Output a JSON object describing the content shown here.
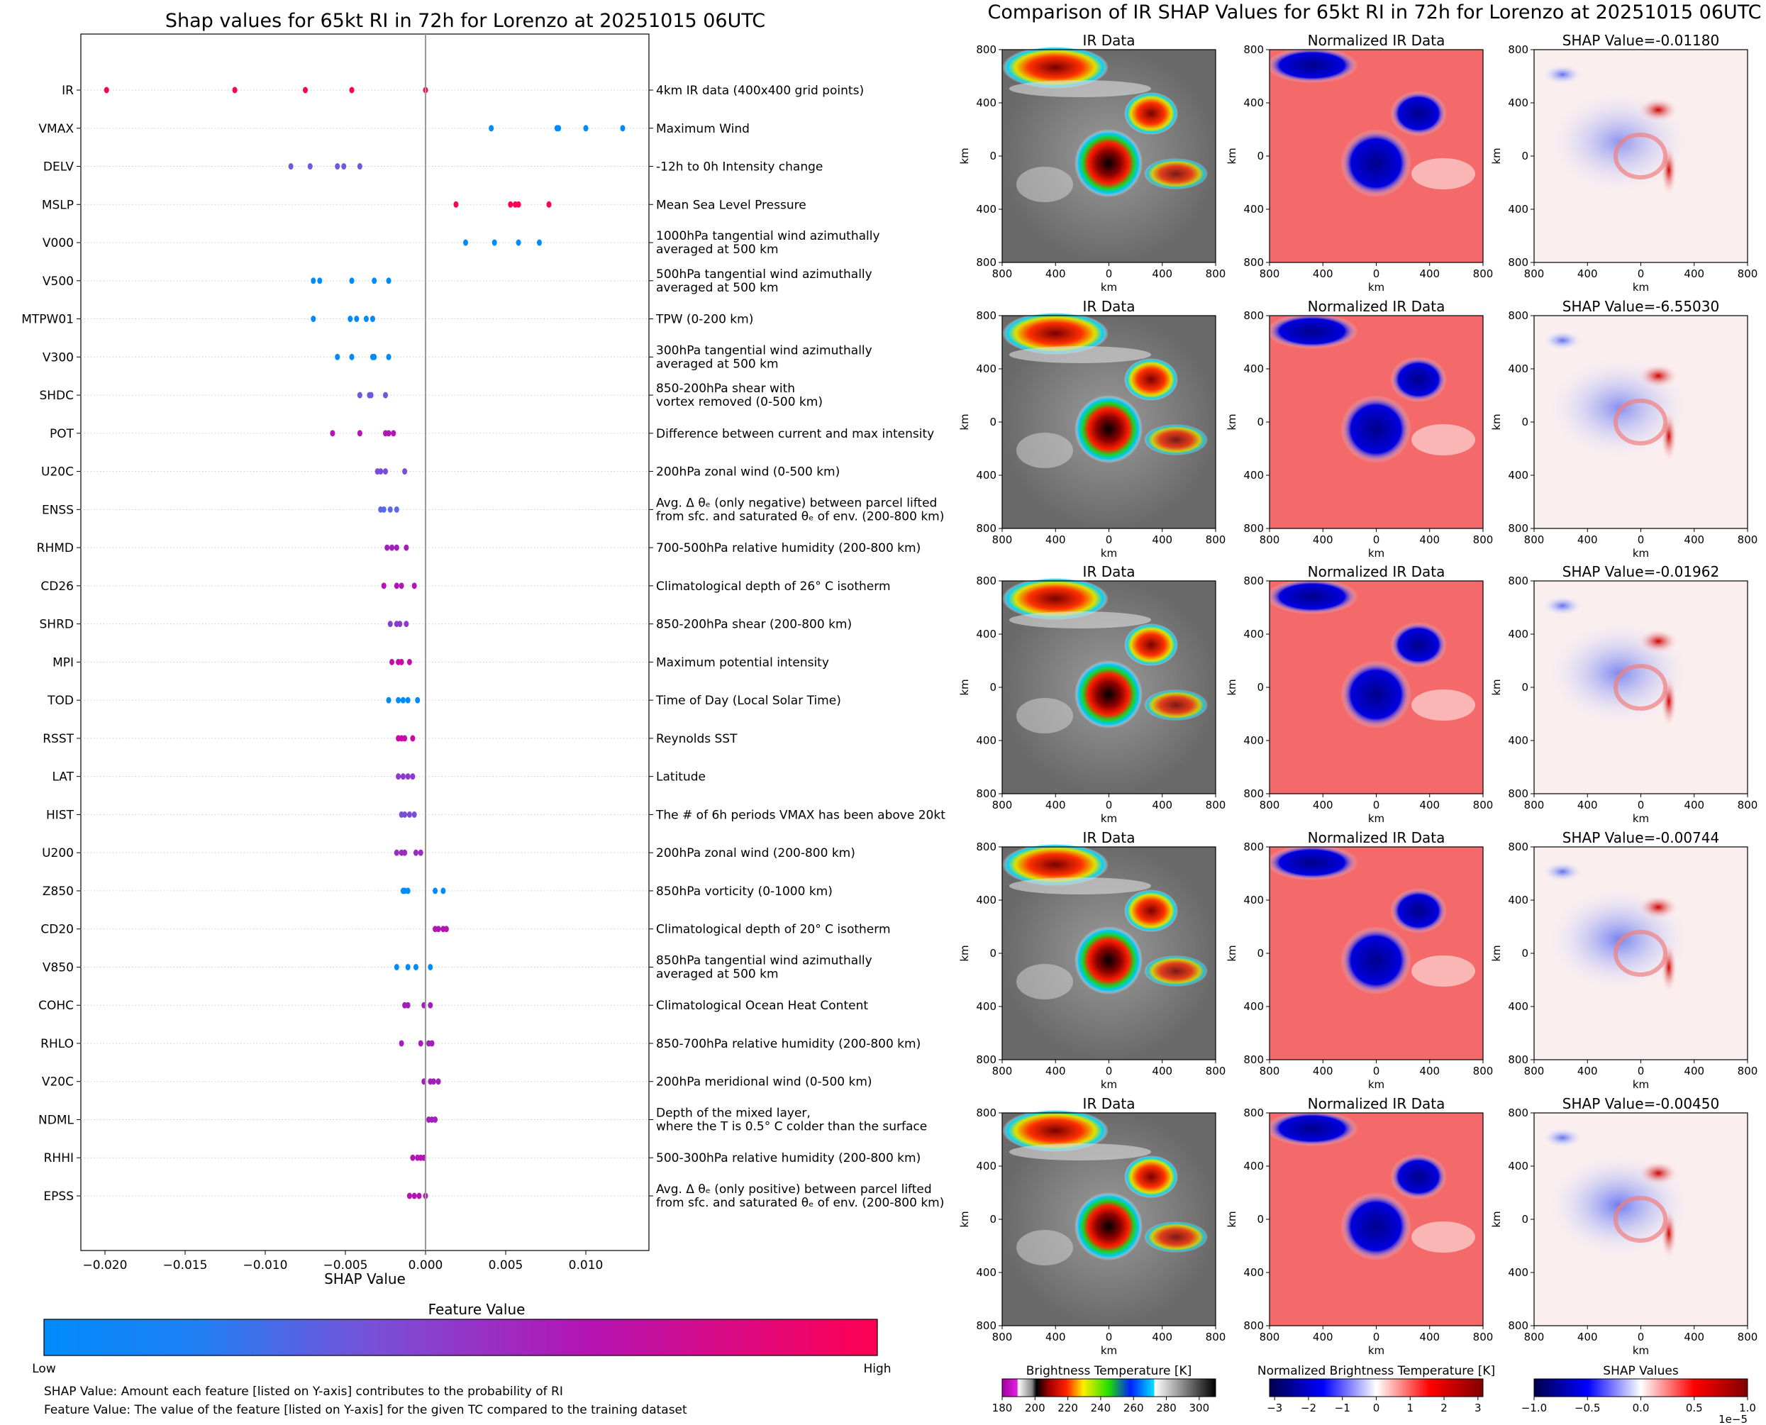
{
  "left": {
    "title": "Shap values for 65kt RI in 72h for Lorenzo at 20251015 06UTC",
    "xlabel": "SHAP Value",
    "xlim": [
      -0.0212,
      0.0138
    ],
    "xticks": [
      -0.02,
      -0.015,
      -0.01,
      -0.005,
      0.0,
      0.005,
      0.01
    ],
    "xtick_labels": [
      "−0.020",
      "−0.015",
      "−0.010",
      "−0.005",
      "0.000",
      "0.005",
      "0.010"
    ],
    "features": [
      {
        "code": "IR",
        "desc": [
          "4km IR data (400x400 grid points)"
        ],
        "color": "#ff0052",
        "values": [
          -0.0199,
          -0.0119,
          -0.0075,
          -0.0046,
          0.0
        ]
      },
      {
        "code": "VMAX",
        "desc": [
          "Maximum Wind"
        ],
        "color": "#008bfb",
        "values": [
          0.0041,
          0.0082,
          0.0083,
          0.01,
          0.0123
        ]
      },
      {
        "code": "DELV",
        "desc": [
          "-12h to 0h Intensity change"
        ],
        "color": "#6e5ae0",
        "values": [
          -0.0084,
          -0.0072,
          -0.0055,
          -0.0051,
          -0.0041
        ]
      },
      {
        "code": "MSLP",
        "desc": [
          "Mean Sea Level Pressure"
        ],
        "color": "#ff0052",
        "values": [
          0.0019,
          0.0053,
          0.0056,
          0.0058,
          0.0077
        ]
      },
      {
        "code": "V000",
        "desc": [
          "1000hPa tangential wind azimuthally",
          "averaged at 500 km"
        ],
        "color": "#008bfb",
        "values": [
          0.0025,
          0.0043,
          0.0058,
          0.0071
        ]
      },
      {
        "code": "V500",
        "desc": [
          "500hPa tangential wind azimuthally",
          "averaged at 500 km"
        ],
        "color": "#008bfb",
        "values": [
          -0.007,
          -0.0066,
          -0.0046,
          -0.0032,
          -0.0023
        ]
      },
      {
        "code": "MTPW01",
        "desc": [
          "TPW (0-200 km)"
        ],
        "color": "#008bfb",
        "values": [
          -0.007,
          -0.0047,
          -0.0043,
          -0.0037,
          -0.0033
        ]
      },
      {
        "code": "V300",
        "desc": [
          "300hPa tangential wind azimuthally",
          "averaged at 500 km"
        ],
        "color": "#008bfb",
        "values": [
          -0.0055,
          -0.0046,
          -0.0033,
          -0.0032,
          -0.0023
        ]
      },
      {
        "code": "SHDC",
        "desc": [
          "850-200hPa shear with",
          "vortex removed (0-500 km)"
        ],
        "color": "#6e5ae0",
        "values": [
          -0.0041,
          -0.0035,
          -0.0034,
          -0.0025
        ]
      },
      {
        "code": "POT",
        "desc": [
          "Difference between current and max intensity"
        ],
        "color": "#b414b4",
        "values": [
          -0.0058,
          -0.0041,
          -0.0025,
          -0.0023,
          -0.002
        ]
      },
      {
        "code": "U20C",
        "desc": [
          "200hPa zonal wind (0-500 km)"
        ],
        "color": "#7a4fd6",
        "values": [
          -0.003,
          -0.0028,
          -0.0025,
          -0.0013
        ]
      },
      {
        "code": "ENSS",
        "desc": [
          "Avg. Δ θₑ (only negative) between parcel lifted",
          "from sfc. and saturated θₑ of env. (200-800 km)"
        ],
        "color": "#5a6ae8",
        "values": [
          -0.0028,
          -0.0026,
          -0.0022,
          -0.0018
        ]
      },
      {
        "code": "RHMD",
        "desc": [
          "700-500hPa relative humidity (200-800 km)"
        ],
        "color": "#a020b8",
        "values": [
          -0.0024,
          -0.0021,
          -0.0018,
          -0.0012
        ]
      },
      {
        "code": "CD26",
        "desc": [
          "Climatological depth of 26° C isotherm"
        ],
        "color": "#b414b4",
        "values": [
          -0.0026,
          -0.0018,
          -0.0015,
          -0.0007
        ]
      },
      {
        "code": "SHRD",
        "desc": [
          "850-200hPa shear (200-800 km)"
        ],
        "color": "#8a3ccc",
        "values": [
          -0.0022,
          -0.0018,
          -0.0016,
          -0.0012
        ]
      },
      {
        "code": "MPI",
        "desc": [
          "Maximum potential intensity"
        ],
        "color": "#c80aa8",
        "values": [
          -0.0021,
          -0.0017,
          -0.0015,
          -0.001
        ]
      },
      {
        "code": "TOD",
        "desc": [
          "Time of Day (Local Solar Time)"
        ],
        "color": "#008bfb",
        "values": [
          -0.0023,
          -0.0017,
          -0.0014,
          -0.0011,
          -0.0005
        ]
      },
      {
        "code": "RSST",
        "desc": [
          "Reynolds SST"
        ],
        "color": "#c80aa8",
        "values": [
          -0.0017,
          -0.0015,
          -0.0013,
          -0.0008
        ]
      },
      {
        "code": "LAT",
        "desc": [
          "Latitude"
        ],
        "color": "#8a3ccc",
        "values": [
          -0.0017,
          -0.0014,
          -0.0011,
          -0.0008
        ]
      },
      {
        "code": "HIST",
        "desc": [
          "The # of 6h periods VMAX has been above 20kt"
        ],
        "color": "#7a4fd6",
        "values": [
          -0.0015,
          -0.0013,
          -0.001,
          -0.0007
        ]
      },
      {
        "code": "U200",
        "desc": [
          "200hPa zonal wind (200-800 km)"
        ],
        "color": "#9a2cc0",
        "values": [
          -0.0018,
          -0.0015,
          -0.0013,
          -0.0006,
          -0.0003
        ]
      },
      {
        "code": "Z850",
        "desc": [
          "850hPa vorticity (0-1000 km)"
        ],
        "color": "#008bfb",
        "values": [
          -0.0014,
          -0.0013,
          -0.0011,
          0.0006,
          0.0011
        ]
      },
      {
        "code": "CD20",
        "desc": [
          "Climatological depth of 20° C isotherm"
        ],
        "color": "#b414b4",
        "values": [
          0.0006,
          0.0008,
          0.0011,
          0.0013
        ]
      },
      {
        "code": "V850",
        "desc": [
          "850hPa tangential wind azimuthally",
          "averaged at 500 km"
        ],
        "color": "#008bfb",
        "values": [
          -0.0018,
          -0.0011,
          -0.0006,
          0.0003
        ]
      },
      {
        "code": "COHC",
        "desc": [
          "Climatological Ocean Heat Content"
        ],
        "color": "#a020b8",
        "values": [
          -0.0013,
          -0.0011,
          -0.0001,
          0.0003
        ]
      },
      {
        "code": "RHLO",
        "desc": [
          "850-700hPa relative humidity (200-800 km)"
        ],
        "color": "#a020b8",
        "values": [
          -0.0015,
          -0.0003,
          0.0002,
          0.0004
        ]
      },
      {
        "code": "V20C",
        "desc": [
          "200hPa meridional wind (0-500 km)"
        ],
        "color": "#a020b8",
        "values": [
          -0.0001,
          0.0003,
          0.0005,
          0.0008
        ]
      },
      {
        "code": "NDML",
        "desc": [
          "Depth of the mixed layer,",
          "where the T is 0.5° C colder than the surface"
        ],
        "color": "#a020b8",
        "values": [
          0.0002,
          0.0004,
          0.0006
        ]
      },
      {
        "code": "RHHI",
        "desc": [
          "500-300hPa relative humidity (200-800 km)"
        ],
        "color": "#b414b4",
        "values": [
          -0.0008,
          -0.0005,
          -0.0003,
          -0.0001
        ]
      },
      {
        "code": "EPSS",
        "desc": [
          "Avg. Δ θₑ (only positive) between parcel lifted",
          "from sfc. and saturated θₑ of env. (200-800 km)"
        ],
        "color": "#b414b4",
        "values": [
          -0.001,
          -0.0007,
          -0.0004,
          0.0
        ]
      }
    ],
    "colorbar": {
      "title": "Feature Value",
      "low": "Low",
      "high": "High",
      "colors": [
        "#008bfb",
        "#7a4fd6",
        "#b414b4",
        "#ff0052"
      ]
    },
    "notes": [
      "SHAP Value: Amount each feature [listed on Y-axis] contributes to the probability of RI",
      "Feature Value: The value of the feature [listed on Y-axis] for the given TC compared to the training dataset"
    ]
  },
  "right": {
    "title": "Comparison of IR SHAP Values for 65kt RI in 72h for Lorenzo at 20251015 06UTC",
    "col_titles": [
      "IR Data",
      "Normalized IR Data"
    ],
    "axis_ticks": [
      "800",
      "400",
      "0",
      "400",
      "800"
    ],
    "axis_label": "km",
    "rows": [
      {
        "shap_title": "SHAP Value=-0.01180"
      },
      {
        "shap_title": "SHAP Value=-6.55030"
      },
      {
        "shap_title": "SHAP Value=-0.01962"
      },
      {
        "shap_title": "SHAP Value=-0.00744"
      },
      {
        "shap_title": "SHAP Value=-0.00450"
      }
    ],
    "colorbars": [
      {
        "title": "Brightness Temperature [K]",
        "ticks": [
          "180",
          "200",
          "220",
          "240",
          "260",
          "280",
          "300"
        ]
      },
      {
        "title": "Normalized Brightness Temperature [K]",
        "ticks": [
          "−3",
          "−2",
          "−1",
          "0",
          "1",
          "2",
          "3"
        ]
      },
      {
        "title": "SHAP Values",
        "ticks": [
          "−1.0",
          "−0.5",
          "0.0",
          "0.5",
          "1.0"
        ],
        "offset": "1e−5"
      }
    ]
  }
}
